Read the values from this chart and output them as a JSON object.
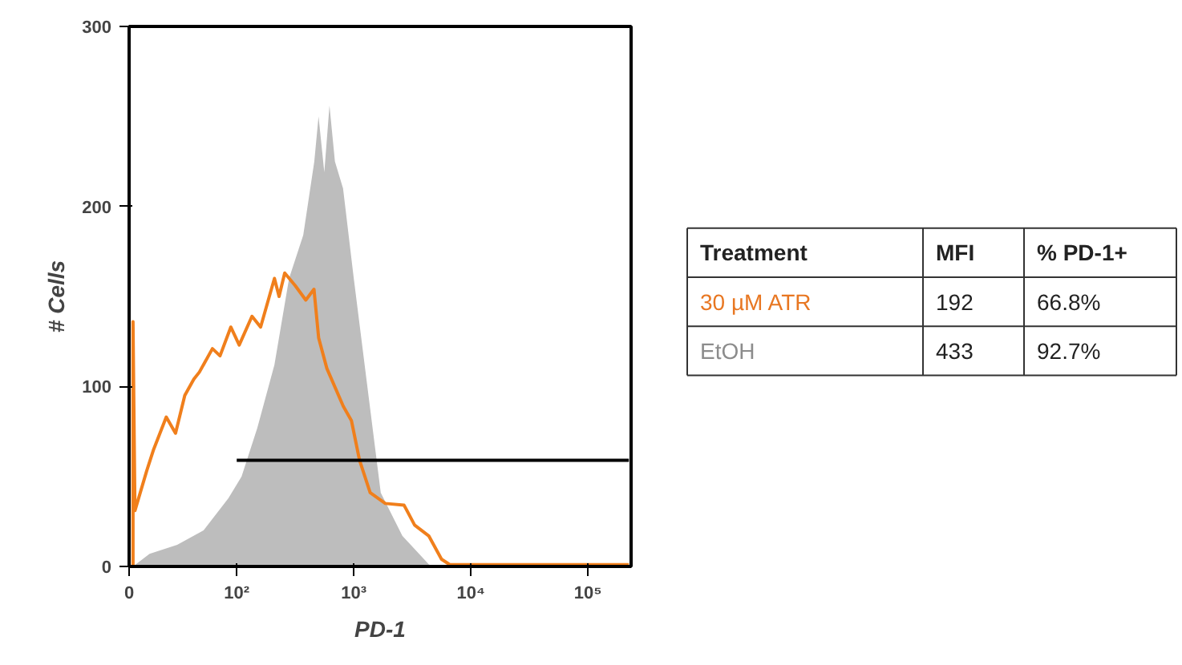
{
  "chart_data": [
    {
      "type": "area",
      "xlabel": "PD-1",
      "ylabel": "# Cells",
      "log": "x",
      "xlim": [
        0,
        234000
      ],
      "ylim": [
        0,
        300
      ],
      "xticks": [
        0,
        {
          "value": 100,
          "label": "10²"
        },
        {
          "value": 1000,
          "label": "10³"
        },
        {
          "value": 10000,
          "label": "10⁴"
        },
        {
          "value": 100000,
          "label": "10⁵"
        }
      ],
      "yticks": [
        0,
        100,
        200,
        300
      ],
      "series": [
        {
          "type": "area",
          "color": "#bdbdbd",
          "x": [
            13,
            18,
            31,
            52,
            85,
            110,
            150,
            210,
            280,
            370,
            460,
            500,
            560,
            620,
            690,
            810,
            1000,
            1300,
            1700,
            2600,
            4400,
            5400
          ],
          "values": [
            0,
            7,
            12,
            20,
            38,
            50,
            77,
            112,
            160,
            184,
            225,
            250,
            219,
            256,
            225,
            210,
            160,
            101,
            41,
            17,
            1,
            0
          ]
        },
        {
          "type": "line",
          "color": "#f07f1c",
          "x": [
            13,
            13,
            13.5,
            17,
            19.5,
            25,
            30,
            36,
            43,
            48,
            62,
            72,
            89,
            105,
            135,
            160,
            210,
            230,
            257,
            316,
            389,
            457,
            501,
            589,
            813,
            955,
            1120,
            1380,
            1860,
            2690,
            3310,
            4370,
            5620,
            6610,
            224000
          ],
          "values": [
            0,
            136,
            31,
            53,
            65,
            83,
            74,
            95,
            104,
            108,
            121,
            117,
            133,
            123,
            139,
            133,
            160,
            150,
            163,
            156,
            148,
            154,
            127,
            110,
            89,
            81,
            59,
            41,
            35,
            34,
            23,
            17,
            4,
            1,
            1
          ]
        },
        {
          "type": "line",
          "color": "#000000",
          "x": [
            100,
            224000
          ],
          "values": [
            59,
            59
          ]
        }
      ]
    },
    {
      "type": "other",
      "categories": [
        "Treatment",
        "MFI",
        "% PD-1+"
      ],
      "cell_labels": [
        [
          "30 µM ATR",
          "192",
          "66.8%"
        ],
        [
          "EtOH",
          "433",
          "92.7%"
        ]
      ],
      "colors": [
        "#e87722",
        "#8c8c8c"
      ]
    }
  ]
}
